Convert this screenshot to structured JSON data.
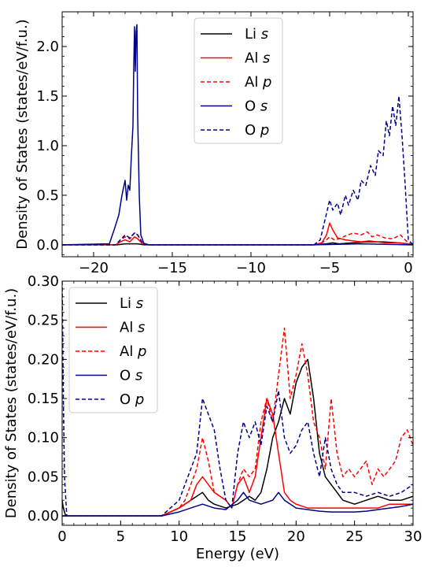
{
  "chart_data": [
    {
      "type": "line",
      "title": "",
      "xlabel": "",
      "ylabel": "Density of States (states/eV/f.u.)",
      "xlim": [
        -22,
        0.3
      ],
      "ylim": [
        -0.12,
        2.35
      ],
      "xticks": [
        -20,
        -15,
        -10,
        -5,
        0
      ],
      "xtick_labels": [
        "−20",
        "−15",
        "−10",
        "−5",
        "0"
      ],
      "yticks": [
        0.0,
        0.5,
        1.0,
        1.5,
        2.0
      ],
      "ytick_labels": [
        "0.0",
        "0.5",
        "1.0",
        "1.5",
        "2.0"
      ],
      "grid": false,
      "legend_position": "upper-center",
      "series": [
        {
          "name": "Li s",
          "element": "Li",
          "orbital": "s",
          "color": "#000000",
          "style": "solid",
          "x": [
            -22,
            -18.5,
            -18.0,
            -17.6,
            -17.2,
            -16.8,
            -6,
            -5.2,
            -4.8,
            -4.4,
            -3.6,
            -2.6,
            -1.6,
            -0.6,
            0,
            0.3
          ],
          "y": [
            0.0,
            0.0,
            0.01,
            0.01,
            0.01,
            0.0,
            0.0,
            0.01,
            0.02,
            0.01,
            0.02,
            0.03,
            0.03,
            0.02,
            0.01,
            0.0
          ]
        },
        {
          "name": "Al s",
          "element": "Al",
          "orbital": "s",
          "color": "#ff0000",
          "style": "solid",
          "x": [
            -22,
            -18.6,
            -18.3,
            -18.0,
            -17.7,
            -17.4,
            -17.2,
            -16.9,
            -16.5,
            -6,
            -5.5,
            -5.2,
            -5.0,
            -4.8,
            -4.5,
            -4.0,
            -3.5,
            -3.0,
            -2.5,
            -2.0,
            -1.5,
            -1.0,
            -0.5,
            -0.2,
            0,
            0.3
          ],
          "y": [
            0.0,
            0.0,
            0.03,
            0.05,
            0.03,
            0.08,
            0.06,
            0.01,
            0.0,
            0.0,
            0.02,
            0.1,
            0.22,
            0.15,
            0.07,
            0.05,
            0.04,
            0.03,
            0.04,
            0.03,
            0.02,
            0.02,
            0.02,
            0.01,
            0.01,
            0.0
          ]
        },
        {
          "name": "Al p",
          "element": "Al",
          "orbital": "p",
          "color": "#ff0000",
          "style": "dashed",
          "x": [
            -22,
            -18.6,
            -18.3,
            -18.0,
            -17.7,
            -17.4,
            -17.2,
            -16.9,
            -16.5,
            -6,
            -5.5,
            -5.2,
            -5.0,
            -4.7,
            -4.4,
            -4.0,
            -3.5,
            -3.0,
            -2.6,
            -2.3,
            -2.0,
            -1.5,
            -1.0,
            -0.5,
            -0.2,
            0,
            0.3
          ],
          "y": [
            0.0,
            0.0,
            0.05,
            0.08,
            0.06,
            0.12,
            0.1,
            0.02,
            0.0,
            0.0,
            0.02,
            0.05,
            0.08,
            0.05,
            0.06,
            0.09,
            0.12,
            0.1,
            0.13,
            0.08,
            0.1,
            0.07,
            0.06,
            0.1,
            0.05,
            0.02,
            0.0
          ]
        },
        {
          "name": "O s",
          "element": "O",
          "orbital": "s",
          "color": "#00008b",
          "style": "solid",
          "x": [
            -22,
            -19.0,
            -18.7,
            -18.4,
            -18.2,
            -18.0,
            -17.9,
            -17.8,
            -17.7,
            -17.6,
            -17.5,
            -17.45,
            -17.4,
            -17.35,
            -17.3,
            -17.25,
            -17.2,
            -17.1,
            -17.0,
            -16.8,
            -16.5,
            -6,
            -3,
            0,
            0.3
          ],
          "y": [
            0.0,
            0.01,
            0.15,
            0.3,
            0.5,
            0.65,
            0.45,
            0.6,
            0.55,
            0.9,
            1.2,
            1.8,
            2.2,
            1.75,
            2.15,
            2.22,
            1.3,
            0.5,
            0.1,
            0.01,
            0.0,
            0.0,
            0.01,
            0.0,
            0.0
          ]
        },
        {
          "name": "O p",
          "element": "O",
          "orbital": "p",
          "color": "#00008b",
          "style": "dashed",
          "x": [
            -22,
            -18.6,
            -18.3,
            -18.0,
            -17.7,
            -17.4,
            -17.2,
            -16.9,
            -16.5,
            -6,
            -5.6,
            -5.3,
            -5.0,
            -4.8,
            -4.5,
            -4.3,
            -4.0,
            -3.8,
            -3.5,
            -3.2,
            -3.0,
            -2.7,
            -2.4,
            -2.1,
            -1.9,
            -1.6,
            -1.4,
            -1.2,
            -1.0,
            -0.8,
            -0.6,
            -0.4,
            -0.2,
            0.0,
            0.3
          ],
          "y": [
            0.0,
            0.0,
            0.05,
            0.1,
            0.07,
            0.12,
            0.1,
            0.02,
            0.0,
            0.0,
            0.05,
            0.25,
            0.45,
            0.35,
            0.42,
            0.3,
            0.5,
            0.4,
            0.55,
            0.45,
            0.65,
            0.6,
            0.8,
            0.7,
            0.95,
            0.9,
            1.25,
            1.1,
            1.4,
            1.2,
            1.5,
            1.1,
            0.6,
            0.05,
            0.0
          ]
        }
      ]
    },
    {
      "type": "line",
      "title": "",
      "xlabel": "Energy (eV)",
      "ylabel": "Density of States (states/eV/f.u.)",
      "xlim": [
        0,
        30
      ],
      "ylim": [
        -0.012,
        0.3
      ],
      "xticks": [
        0,
        5,
        10,
        15,
        20,
        25,
        30
      ],
      "xtick_labels": [
        "0",
        "5",
        "10",
        "15",
        "20",
        "25",
        "30"
      ],
      "yticks": [
        0.0,
        0.05,
        0.1,
        0.15,
        0.2,
        0.25,
        0.3
      ],
      "ytick_labels": [
        "0.00",
        "0.05",
        "0.10",
        "0.15",
        "0.20",
        "0.25",
        "0.30"
      ],
      "grid": false,
      "legend_position": "upper-left",
      "series": [
        {
          "name": "Li s",
          "element": "Li",
          "orbital": "s",
          "color": "#000000",
          "style": "solid",
          "x": [
            0,
            0.1,
            0.3,
            8.5,
            10,
            11,
            12,
            12.5,
            13,
            14,
            15,
            15.5,
            16,
            16.5,
            17,
            17.5,
            18,
            18.5,
            19,
            19.5,
            20,
            20.5,
            21,
            21.5,
            22,
            22.5,
            23,
            24,
            25,
            26,
            27,
            28,
            29,
            30
          ],
          "y": [
            0.02,
            0.01,
            0.0,
            0.0,
            0.01,
            0.02,
            0.03,
            0.02,
            0.015,
            0.01,
            0.015,
            0.02,
            0.025,
            0.02,
            0.03,
            0.06,
            0.1,
            0.12,
            0.15,
            0.13,
            0.17,
            0.19,
            0.2,
            0.15,
            0.08,
            0.05,
            0.04,
            0.02,
            0.015,
            0.02,
            0.025,
            0.02,
            0.02,
            0.025
          ]
        },
        {
          "name": "Al s",
          "element": "Al",
          "orbital": "s",
          "color": "#ff0000",
          "style": "solid",
          "x": [
            0,
            0.3,
            8.5,
            10,
            11,
            11.5,
            12,
            12.5,
            13,
            14,
            14.5,
            15,
            15.5,
            16,
            16.5,
            17,
            17.5,
            18,
            18.5,
            19,
            19.5,
            20,
            21,
            22,
            23,
            24,
            25,
            26,
            27,
            28,
            29,
            30
          ],
          "y": [
            0.0,
            0.0,
            0.0,
            0.01,
            0.02,
            0.04,
            0.05,
            0.04,
            0.03,
            0.02,
            0.01,
            0.04,
            0.05,
            0.03,
            0.05,
            0.1,
            0.15,
            0.13,
            0.08,
            0.03,
            0.02,
            0.015,
            0.01,
            0.01,
            0.01,
            0.01,
            0.01,
            0.01,
            0.01,
            0.015,
            0.015,
            0.015
          ]
        },
        {
          "name": "Al p",
          "element": "Al",
          "orbital": "p",
          "color": "#ff0000",
          "style": "dashed",
          "x": [
            0,
            0.3,
            8.5,
            10,
            10.5,
            11,
            11.5,
            12,
            12.5,
            13,
            14,
            14.5,
            15,
            15.5,
            16,
            16.5,
            17,
            17.5,
            18,
            18.5,
            19,
            19.5,
            20,
            20.5,
            21,
            21.5,
            22,
            22.5,
            23,
            23.5,
            24,
            24.5,
            25,
            25.5,
            26,
            26.5,
            27,
            27.5,
            28,
            28.5,
            29,
            29.5,
            30
          ],
          "y": [
            0.0,
            0.0,
            0.0,
            0.01,
            0.02,
            0.04,
            0.06,
            0.1,
            0.07,
            0.03,
            0.02,
            0.01,
            0.04,
            0.06,
            0.05,
            0.06,
            0.12,
            0.15,
            0.12,
            0.18,
            0.24,
            0.15,
            0.18,
            0.22,
            0.18,
            0.12,
            0.1,
            0.06,
            0.15,
            0.08,
            0.05,
            0.06,
            0.05,
            0.06,
            0.07,
            0.04,
            0.06,
            0.05,
            0.06,
            0.07,
            0.1,
            0.11,
            0.09
          ]
        },
        {
          "name": "O s",
          "element": "O",
          "orbital": "s",
          "color": "#00008b",
          "style": "solid",
          "x": [
            0,
            0.3,
            8.5,
            10,
            11,
            12,
            13,
            14,
            15,
            15.5,
            16,
            17,
            18,
            18.5,
            19,
            20,
            21,
            22,
            23,
            24,
            25,
            26,
            27,
            28,
            29,
            30
          ],
          "y": [
            0.0,
            0.0,
            0.0,
            0.005,
            0.01,
            0.015,
            0.01,
            0.008,
            0.02,
            0.03,
            0.02,
            0.015,
            0.02,
            0.03,
            0.02,
            0.01,
            0.008,
            0.006,
            0.005,
            0.005,
            0.005,
            0.006,
            0.008,
            0.01,
            0.012,
            0.015
          ]
        },
        {
          "name": "O p",
          "element": "O",
          "orbital": "p",
          "color": "#00008b",
          "style": "dashed",
          "x": [
            0,
            0.1,
            0.2,
            0.4,
            8.5,
            10,
            10.5,
            11,
            11.5,
            12,
            12.5,
            13,
            13.5,
            14,
            14.5,
            15,
            15.5,
            16,
            16.5,
            17,
            17.5,
            18,
            18.5,
            19,
            19.5,
            20,
            20.5,
            21,
            21.5,
            22,
            22.5,
            23,
            23.5,
            24,
            25,
            26,
            27,
            28,
            29,
            30
          ],
          "y": [
            0.3,
            0.15,
            0.05,
            0.0,
            0.0,
            0.02,
            0.04,
            0.06,
            0.08,
            0.15,
            0.13,
            0.11,
            0.06,
            0.02,
            0.01,
            0.08,
            0.12,
            0.1,
            0.12,
            0.09,
            0.14,
            0.12,
            0.16,
            0.1,
            0.08,
            0.09,
            0.11,
            0.12,
            0.08,
            0.05,
            0.1,
            0.06,
            0.04,
            0.03,
            0.03,
            0.025,
            0.03,
            0.025,
            0.03,
            0.04
          ]
        }
      ]
    }
  ]
}
